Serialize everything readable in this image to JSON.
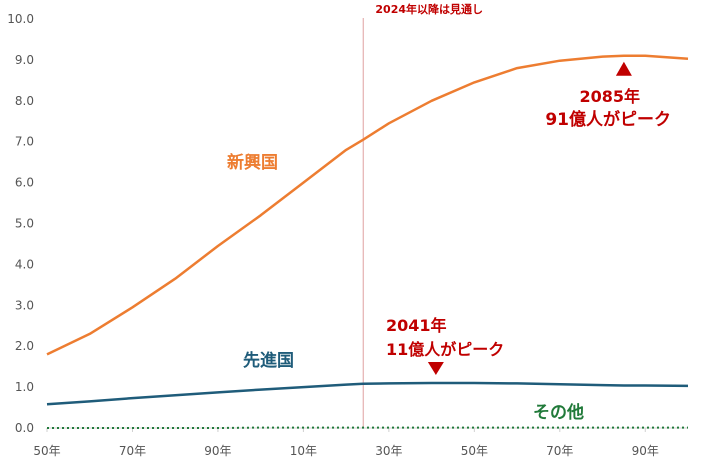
{
  "chart_data": {
    "type": "line",
    "title": "",
    "xlabel": "",
    "ylabel": "",
    "xlim": [
      1950,
      2100
    ],
    "ylim": [
      0,
      10
    ],
    "y_ticks": [
      "0.0",
      "1.0",
      "2.0",
      "3.0",
      "4.0",
      "5.0",
      "6.0",
      "7.0",
      "8.0",
      "9.0",
      "10.0"
    ],
    "x_ticks": [
      {
        "x": 1950,
        "label": "50年"
      },
      {
        "x": 1970,
        "label": "70年"
      },
      {
        "x": 1990,
        "label": "90年"
      },
      {
        "x": 2010,
        "label": "10年"
      },
      {
        "x": 2030,
        "label": "30年"
      },
      {
        "x": 2050,
        "label": "50年"
      },
      {
        "x": 2070,
        "label": "70年"
      },
      {
        "x": 2090,
        "label": "90年"
      }
    ],
    "x": [
      1950,
      1960,
      1970,
      1980,
      1990,
      2000,
      2010,
      2020,
      2024,
      2030,
      2040,
      2050,
      2060,
      2070,
      2080,
      2085,
      2090,
      2100
    ],
    "series": [
      {
        "name": "新興国",
        "color": "#ed7d31",
        "values": [
          1.8,
          2.3,
          2.95,
          3.65,
          4.45,
          5.2,
          6.0,
          6.8,
          7.05,
          7.45,
          8.0,
          8.45,
          8.8,
          8.98,
          9.08,
          9.1,
          9.1,
          9.03
        ]
      },
      {
        "name": "先進国",
        "color": "#1f5c7a",
        "values": [
          0.58,
          0.65,
          0.73,
          0.8,
          0.87,
          0.94,
          1.0,
          1.06,
          1.08,
          1.09,
          1.1,
          1.1,
          1.09,
          1.07,
          1.05,
          1.04,
          1.04,
          1.03
        ]
      },
      {
        "name": "その他",
        "color": "#217a3a",
        "dashed": true,
        "values": [
          0.0,
          0.0,
          0.0,
          0.0,
          0.0,
          0.01,
          0.01,
          0.01,
          0.01,
          0.01,
          0.01,
          0.01,
          0.01,
          0.01,
          0.01,
          0.01,
          0.01,
          0.01
        ]
      }
    ],
    "forecast_line": {
      "x": 2024,
      "label": "2024年以降は見通し"
    },
    "annotations": [
      {
        "series": "先進国",
        "x": 2041,
        "y": 1.1,
        "line1": "2041年",
        "line2": "11億人がピーク",
        "marker": "down-triangle"
      },
      {
        "series": "新興国",
        "x": 2085,
        "y": 9.1,
        "line1": "2085年",
        "line2": "91億人がピーク",
        "marker": "up-triangle"
      }
    ],
    "grid": false,
    "legend": "none"
  }
}
